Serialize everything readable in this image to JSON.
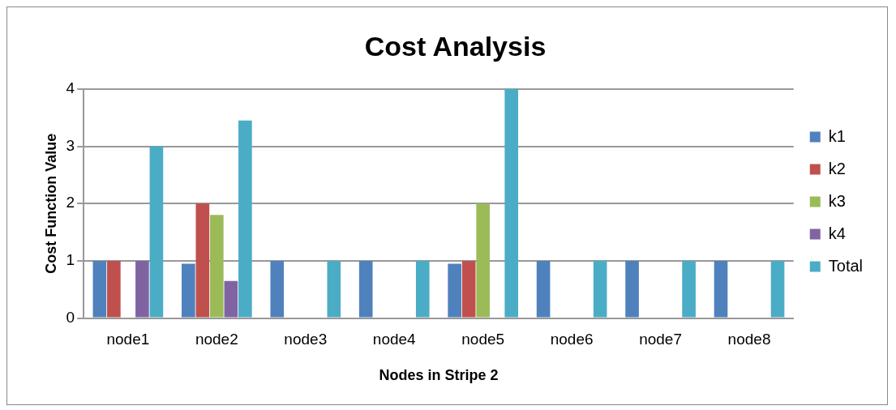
{
  "chart_data": {
    "type": "bar",
    "title": "Cost Analysis",
    "xlabel": "Nodes in Stripe 2",
    "ylabel": "Cost Function Value",
    "categories": [
      "node1",
      "node2",
      "node3",
      "node4",
      "node5",
      "node6",
      "node7",
      "node8"
    ],
    "series": [
      {
        "name": "k1",
        "color": "#4f81bd",
        "values": [
          1,
          0.95,
          1,
          1,
          0.95,
          1,
          1,
          1
        ]
      },
      {
        "name": "k2",
        "color": "#c0504d",
        "values": [
          1,
          2,
          0,
          0,
          1,
          0,
          0,
          0
        ]
      },
      {
        "name": "k3",
        "color": "#9bbb59",
        "values": [
          0,
          1.8,
          0,
          0,
          2,
          0,
          0,
          0
        ]
      },
      {
        "name": "k4",
        "color": "#8064a2",
        "values": [
          1,
          0.65,
          0,
          0,
          0,
          0,
          0,
          0
        ]
      },
      {
        "name": "Total",
        "color": "#4bacc6",
        "values": [
          3,
          3.45,
          1,
          1,
          4,
          1,
          1,
          1
        ]
      }
    ],
    "ylim": [
      0,
      4
    ],
    "yticks": [
      0,
      1,
      2,
      3,
      4
    ],
    "grid": "y",
    "legend": "right"
  }
}
